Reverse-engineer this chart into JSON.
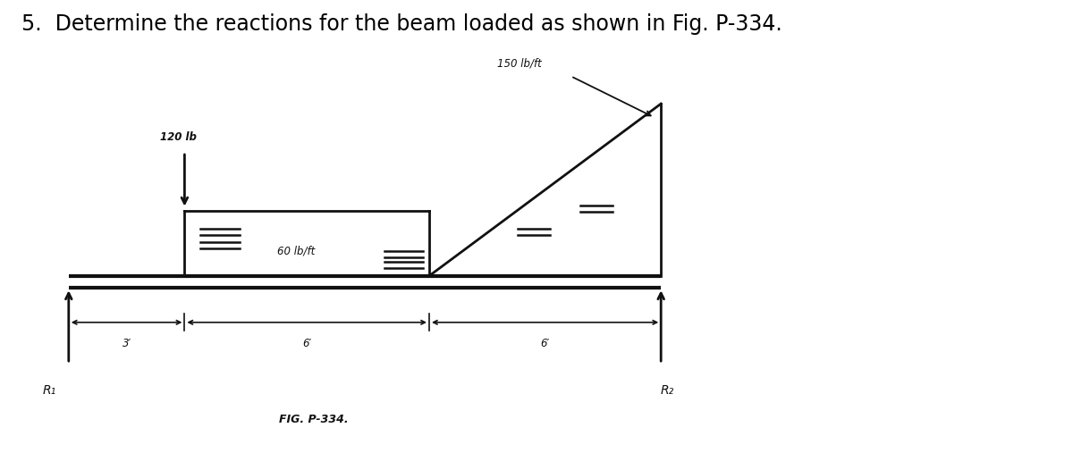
{
  "title": "5.  Determine the reactions for the beam loaded as shown in Fig. P-334.",
  "title_fontsize": 17,
  "fig_caption": "FIG. P-334.",
  "background_color": "#d0ccc7",
  "outer_bg": "#ffffff",
  "beam_color": "#111111",
  "label_120lb": "120 lb",
  "label_60lbft": "60 lb/ft",
  "label_150lbft": "150 lb/ft",
  "label_3": "3′",
  "label_6a": "6′",
  "label_6b": "6′",
  "label_R1": "R₁",
  "label_R2": "R₂",
  "fig_caption_label": "FIG. P-334."
}
